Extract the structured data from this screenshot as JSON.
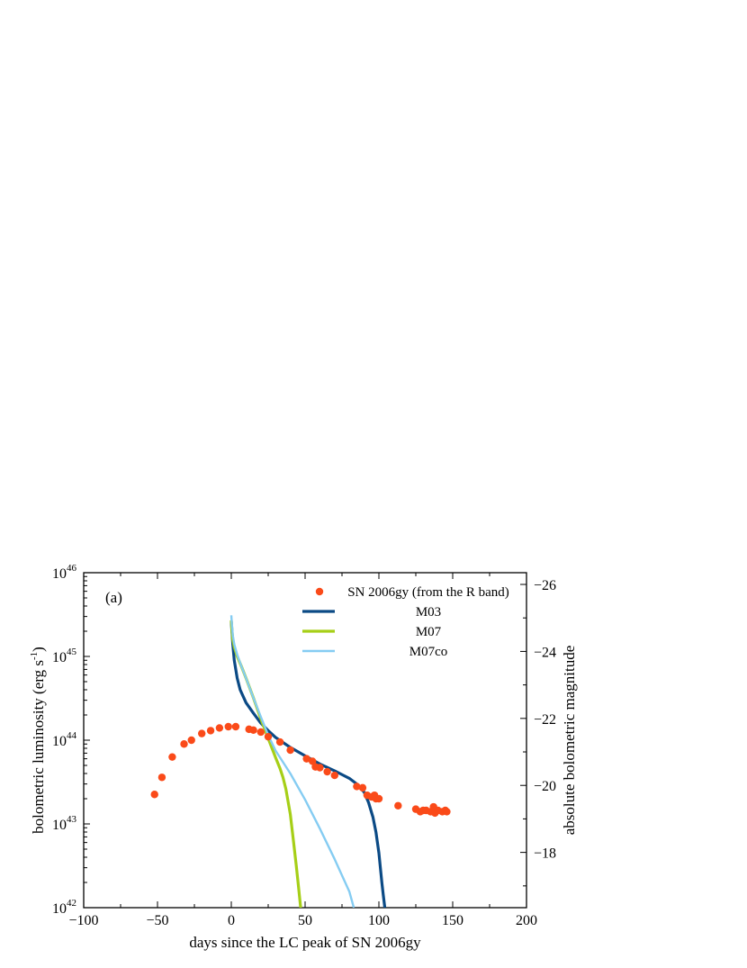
{
  "chart_data": {
    "type": "line",
    "panel_label": "(a)",
    "xlabel": "days since the LC peak of SN 2006gy",
    "ylabel": "bolometric luminosity (erg s",
    "ylabel_sup": "-1",
    "ylabel_tail": ")",
    "y2label": "absolute bolometric magnitude",
    "xlim": [
      -100,
      200
    ],
    "ylim": [
      1e+42,
      1e+46
    ],
    "yscale": "log",
    "y2lim": [
      -16.35,
      -26.35
    ],
    "x_ticks": [
      -100,
      -50,
      0,
      50,
      100,
      150,
      200
    ],
    "x_tick_labels": [
      "−100",
      "−50",
      "0",
      "50",
      "100",
      "150",
      "200"
    ],
    "y_ticks": [
      1e+42,
      1e+43,
      1e+44,
      1e+45,
      1e+46
    ],
    "y_tick_base": "10",
    "y_tick_exps": [
      "42",
      "43",
      "44",
      "45",
      "46"
    ],
    "y2_ticks": [
      -18,
      -20,
      -22,
      -24,
      -26
    ],
    "y2_tick_labels": [
      "−18",
      "−20",
      "−22",
      "−24",
      "−26"
    ],
    "legend_position": "top-right",
    "colors": {
      "points": "#fa4a19",
      "M03": "#0b4a85",
      "M07": "#a6cf17",
      "M07co": "#85ccf2"
    },
    "points": {
      "name": "SN 2006gy (from the R band)",
      "x": [
        -52,
        -47,
        -40,
        -32,
        -27,
        -20,
        -14,
        -8,
        -2,
        3,
        12,
        15,
        20,
        25,
        33,
        40,
        51,
        55,
        57,
        60,
        65,
        70,
        85,
        89,
        92,
        95,
        97,
        98,
        100,
        113,
        125,
        128,
        130,
        132,
        135,
        137,
        138,
        140,
        143,
        145,
        146
      ],
      "y": [
        2.25e+43,
        3.6e+43,
        6.3e+43,
        9e+43,
        1e+44,
        1.2e+44,
        1.3e+44,
        1.4e+44,
        1.45e+44,
        1.45e+44,
        1.35e+44,
        1.32e+44,
        1.25e+44,
        1.1e+44,
        9.5e+43,
        7.6e+43,
        6e+43,
        5.6e+43,
        4.8e+43,
        4.7e+43,
        4.2e+43,
        3.8e+43,
        2.8e+43,
        2.7e+43,
        2.2e+43,
        2.1e+43,
        2.2e+43,
        2e+43,
        2e+43,
        1.65e+43,
        1.5e+43,
        1.4e+43,
        1.45e+43,
        1.45e+43,
        1.4e+43,
        1.6e+43,
        1.35e+43,
        1.45e+43,
        1.4e+43,
        1.45e+43,
        1.4e+43
      ]
    },
    "series": [
      {
        "name": "M03",
        "x": [
          0,
          0.5,
          1,
          2,
          4,
          6,
          10,
          15,
          20,
          25,
          30,
          40,
          50,
          60,
          70,
          80,
          85,
          90,
          93,
          96,
          98,
          100,
          101,
          102,
          103,
          104
        ],
        "y": [
          2.6e+45,
          1.9e+45,
          1.4e+45,
          9e+44,
          5.5e+44,
          4e+44,
          2.8e+44,
          2.1e+44,
          1.6e+44,
          1.3e+44,
          1.08e+44,
          8.2e+43,
          6.5e+43,
          5.2e+43,
          4.3e+43,
          3.5e+43,
          3e+43,
          2.4e+43,
          1.8e+43,
          1.2e+43,
          8e+42,
          4.5e+42,
          3e+42,
          2e+42,
          1.4e+42,
          1e+42
        ]
      },
      {
        "name": "M07",
        "x": [
          0,
          0.5,
          1,
          2,
          4,
          7,
          10,
          15,
          20,
          25,
          30,
          33,
          35,
          37,
          40,
          42,
          44,
          45.5,
          47
        ],
        "y": [
          2.7e+45,
          2e+45,
          1.6e+45,
          1.3e+45,
          1e+45,
          7.5e+44,
          5.5e+44,
          3.2e+44,
          1.8e+44,
          1.05e+44,
          6.2e+43,
          4.6e+43,
          3.6e+43,
          2.6e+43,
          1.3e+43,
          6.5e+42,
          3.2e+42,
          1.8e+42,
          1e+42
        ]
      },
      {
        "name": "M07co",
        "x": [
          0,
          0.5,
          1,
          2,
          4,
          7,
          10,
          15,
          20,
          25,
          30,
          40,
          50,
          60,
          70,
          80,
          83
        ],
        "y": [
          3.1e+45,
          2.3e+45,
          1.8e+45,
          1.4e+45,
          1.05e+45,
          7.5e+44,
          5.5e+44,
          3.2e+44,
          1.9e+44,
          1.15e+44,
          7.5e+43,
          4e+43,
          1.95e+43,
          8.8e+42,
          3.8e+42,
          1.55e+42,
          1e+42
        ]
      }
    ]
  }
}
